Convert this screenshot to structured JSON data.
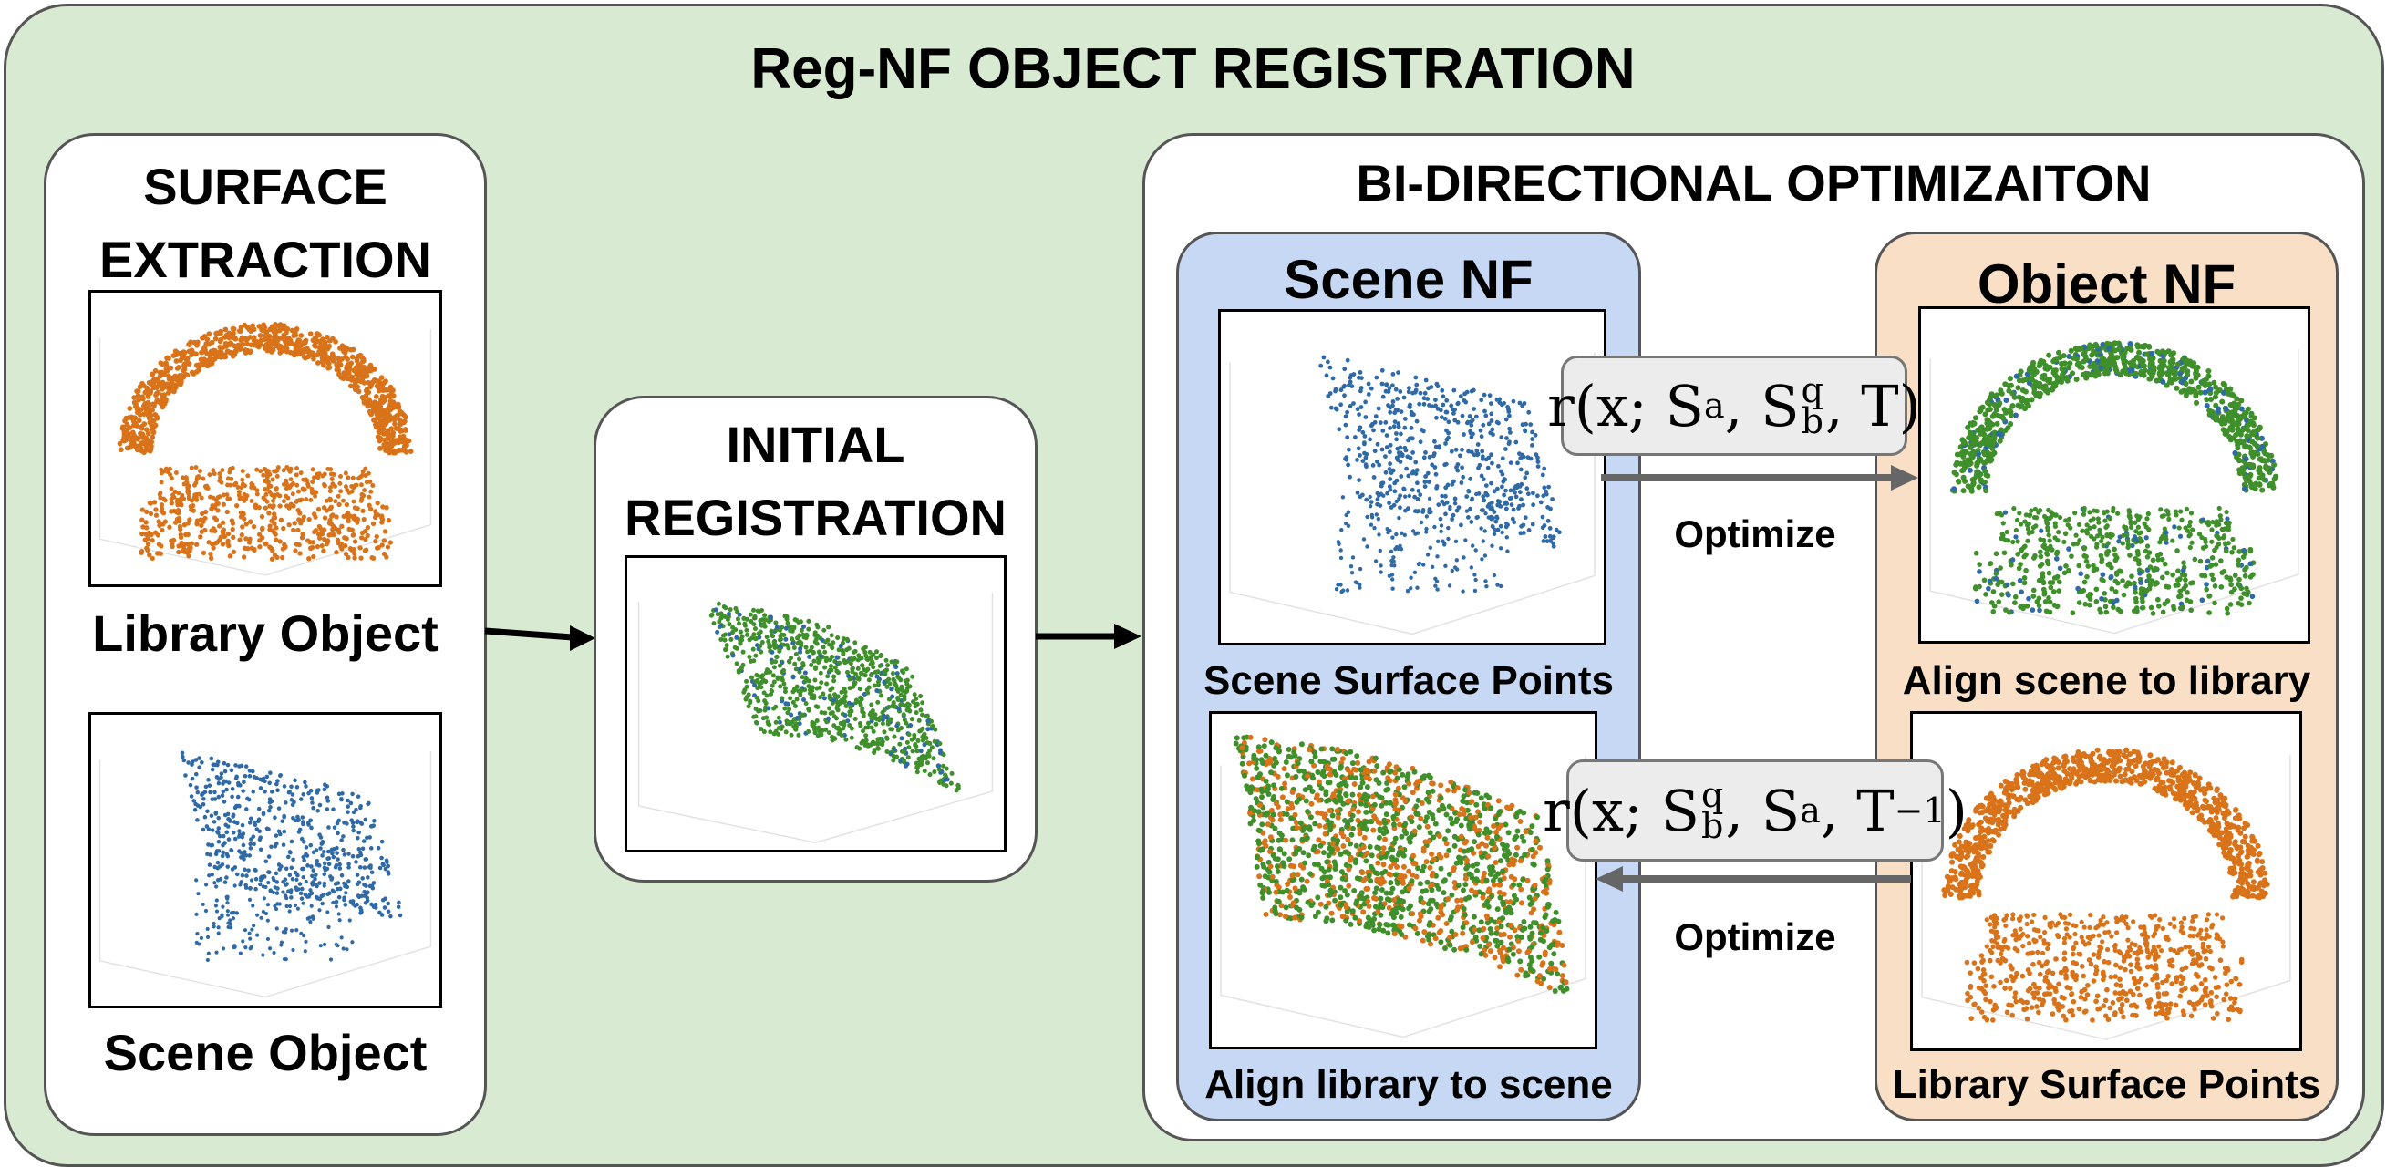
{
  "main_title": "Reg-NF OBJECT REGISTRATION",
  "surface": {
    "title_line1": "SURFACE",
    "title_line2": "EXTRACTION",
    "library_label": "Library Object",
    "scene_label": "Scene Object"
  },
  "initial": {
    "title_line1": "INITIAL",
    "title_line2": "REGISTRATION"
  },
  "bidir": {
    "title": "BI-DIRECTIONAL OPTIMIZAITON",
    "scene_nf": "Scene NF",
    "object_nf": "Object NF",
    "scene_surface_points": "Scene Surface Points",
    "align_library_to_scene": "Align library to scene",
    "align_scene_to_library": "Align scene to library",
    "library_surface_points": "Library Surface Points",
    "optimize_top": "Optimize",
    "optimize_bottom": "Optimize",
    "eq_top": {
      "pre": "r(x; S",
      "s1": "a",
      "mid": ", S",
      "s2": "b",
      "sp2": "q",
      "post": ", T)"
    },
    "eq_bottom": {
      "pre": "r(x; S",
      "s1": "b",
      "sp1": "q",
      "mid": ", S",
      "s2": "a",
      "post": ", T",
      "sp3": "−1",
      "end": ")"
    }
  },
  "colors": {
    "library_points": "#d9731a",
    "scene_points": "#2f6aa6",
    "aligned_points": "#3f8f2a"
  }
}
